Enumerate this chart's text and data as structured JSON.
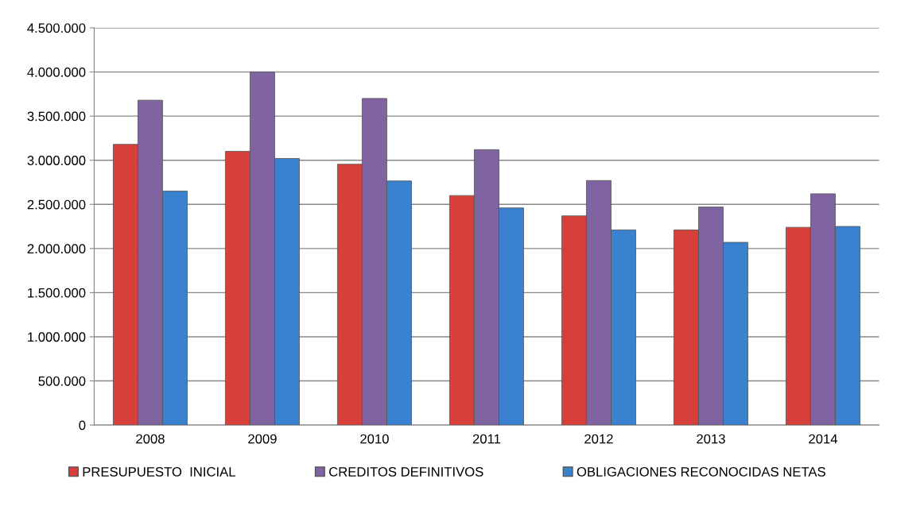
{
  "chart_data": {
    "type": "bar",
    "categories": [
      "2008",
      "2009",
      "2010",
      "2011",
      "2012",
      "2013",
      "2014"
    ],
    "series": [
      {
        "name": "PRESUPUESTO  INICIAL",
        "color": "#d7403a",
        "values": [
          3180000,
          3100000,
          2955000,
          2600000,
          2370000,
          2210000,
          2240000
        ]
      },
      {
        "name": "CREDITOS DEFINITIVOS",
        "color": "#8064a2",
        "values": [
          3680000,
          4000000,
          3700000,
          3120000,
          2770000,
          2470000,
          2620000
        ]
      },
      {
        "name": "OBLIGACIONES RECONOCIDAS NETAS",
        "color": "#3a82d0",
        "values": [
          2650000,
          3020000,
          2765000,
          2460000,
          2210000,
          2070000,
          2250000
        ]
      }
    ],
    "ylim": [
      0,
      4500000
    ],
    "yticks": [
      {
        "value": 0,
        "label": "0"
      },
      {
        "value": 500000,
        "label": "500.000"
      },
      {
        "value": 1000000,
        "label": "1.000.000"
      },
      {
        "value": 1500000,
        "label": "1.500.000"
      },
      {
        "value": 2000000,
        "label": "2.000.000"
      },
      {
        "value": 2500000,
        "label": "2.500.000"
      },
      {
        "value": 3000000,
        "label": "3.000.000"
      },
      {
        "value": 3500000,
        "label": "3.500.000"
      },
      {
        "value": 4000000,
        "label": "4.000.000"
      },
      {
        "value": 4500000,
        "label": "4.500.000"
      }
    ],
    "grid": "y",
    "legend": "bottom"
  }
}
